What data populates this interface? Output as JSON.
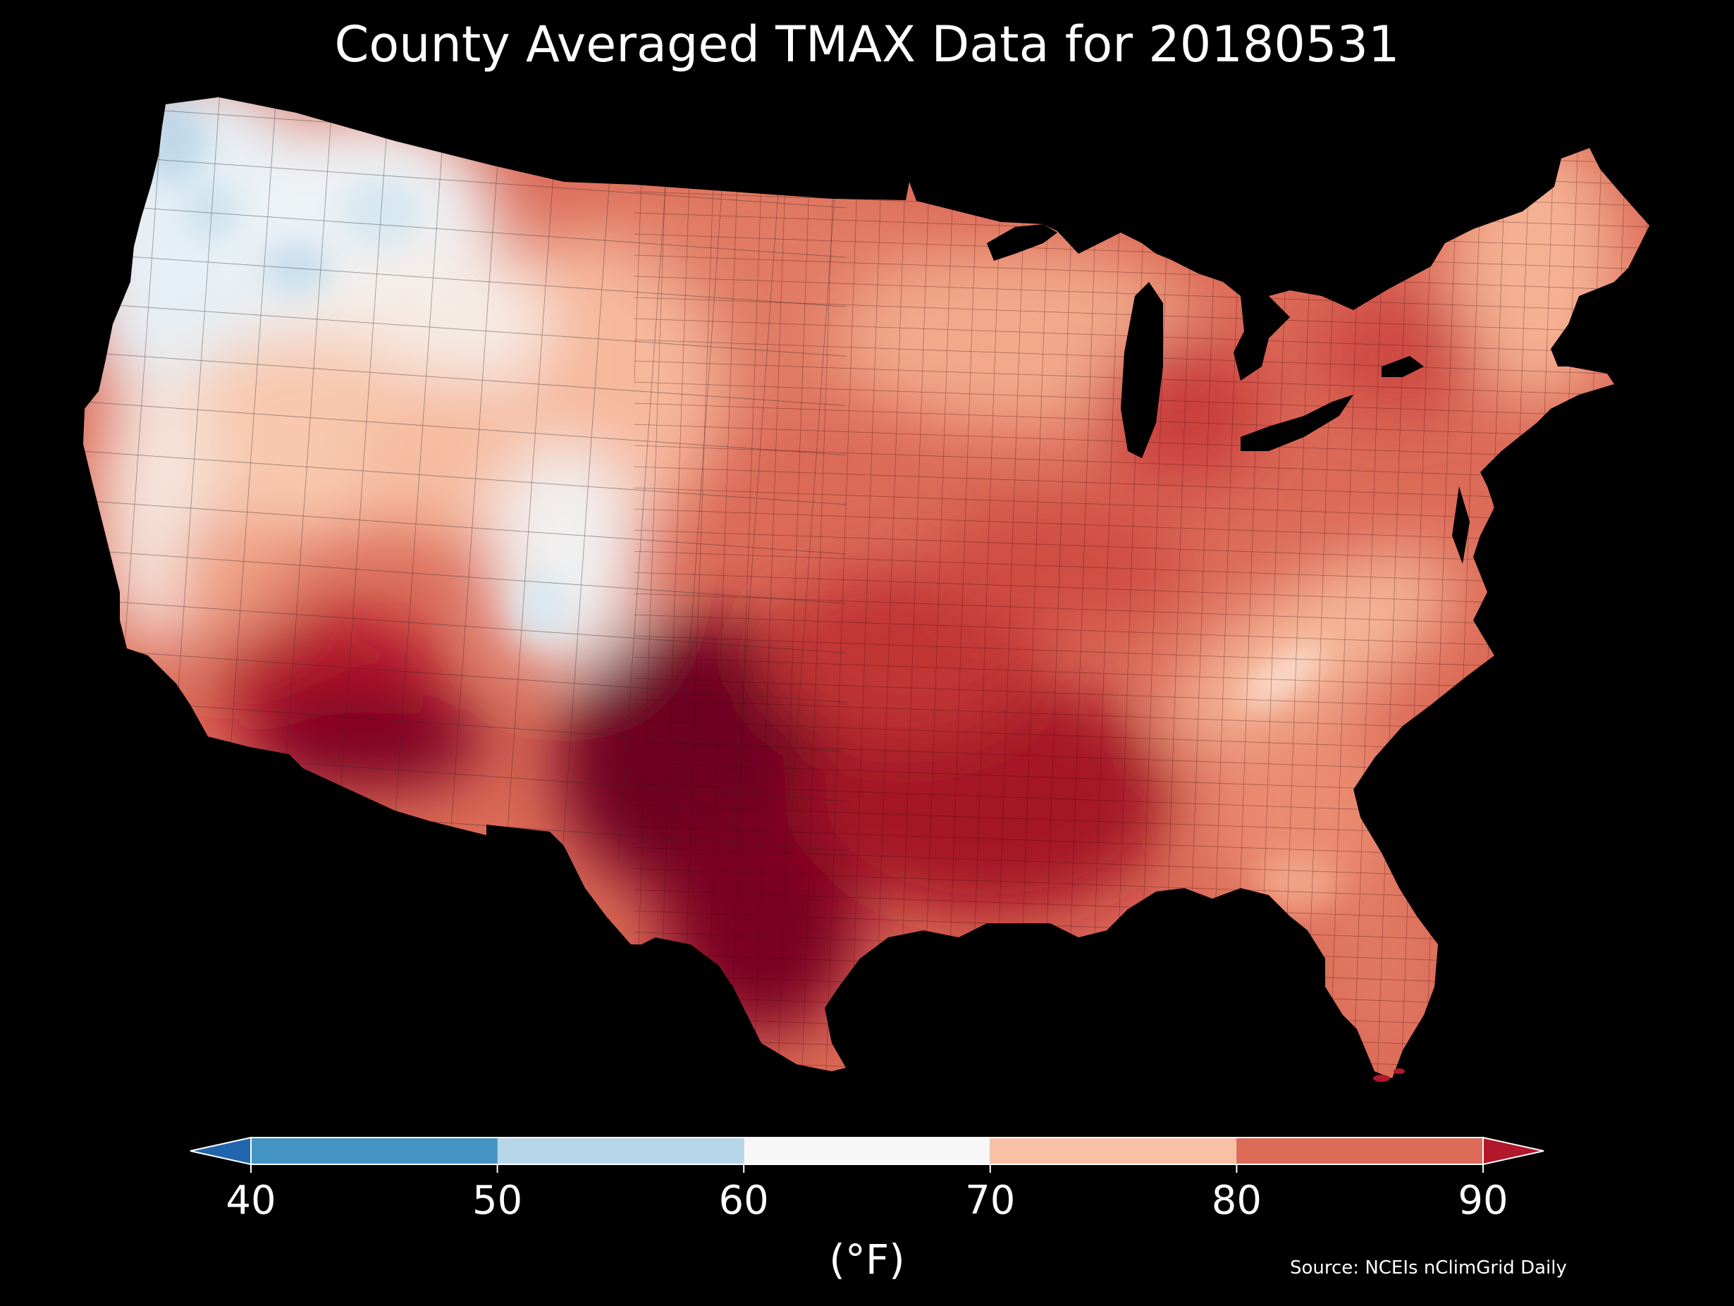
{
  "title": "County Averaged TMAX Data for 20180531",
  "colorbar": {
    "ticks": [
      "40",
      "50",
      "60",
      "70",
      "80",
      "90"
    ],
    "unit": "(°F)",
    "bins": [
      {
        "from": 40,
        "to": 50,
        "color": "#4393c3"
      },
      {
        "from": 50,
        "to": 60,
        "color": "#b6d7e8"
      },
      {
        "from": 60,
        "to": 70,
        "color": "#f7f7f7"
      },
      {
        "from": 70,
        "to": 80,
        "color": "#f8c1a5"
      },
      {
        "from": 80,
        "to": 90,
        "color": "#dc6b58"
      }
    ],
    "under_color": "#2166ac",
    "over_color": "#b2182b"
  },
  "source": "Source: NCEIs nClimGrid Daily",
  "map": {
    "region": "Contiguous United States",
    "variable": "TMAX",
    "colors": {
      "background": "#000000",
      "coolest": "#4393c3",
      "cool": "#d6e8f2",
      "neutral": "#f7f7f7",
      "warm": "#f8c1a5",
      "hot": "#dc6b58",
      "hottest": "#67001f"
    },
    "zones": [
      {
        "label": "Pacific Northwest coast",
        "range": "50-60"
      },
      {
        "label": "Northern Rockies / Idaho",
        "range": "60-70"
      },
      {
        "label": "Colorado Rockies",
        "range": "60-70"
      },
      {
        "label": "Northern Plains / Dakotas",
        "range": "80-90"
      },
      {
        "label": "Great Lakes / Northeast",
        "range": "80-90"
      },
      {
        "label": "Southern Appalachians",
        "range": "70-80"
      },
      {
        "label": "Desert Southwest",
        "range": ">90"
      },
      {
        "label": "Texas / Southern Plains",
        "range": ">90"
      }
    ]
  }
}
